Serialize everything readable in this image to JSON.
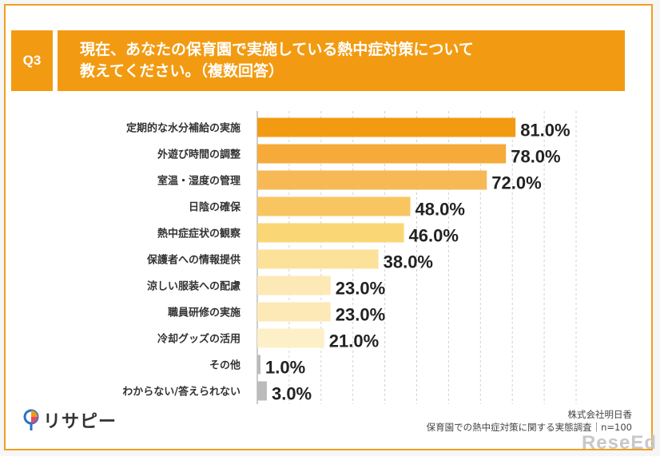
{
  "question": {
    "number": "Q3",
    "title": "現在、あなたの保育園で実施している熱中症対策について\n教えてください。（複数回答）"
  },
  "chart_data": {
    "type": "bar",
    "orientation": "horizontal",
    "categories": [
      "定期的な水分補給の実施",
      "外遊び時間の調整",
      "室温・湿度の管理",
      "日陰の確保",
      "熱中症症状の観察",
      "保護者への情報提供",
      "涼しい服装への配慮",
      "職員研修の実施",
      "冷却グッズの活用",
      "その他",
      "わからない/答えられない"
    ],
    "values": [
      81.0,
      78.0,
      72.0,
      48.0,
      46.0,
      38.0,
      23.0,
      23.0,
      21.0,
      1.0,
      3.0
    ],
    "labels": [
      "81.0%",
      "78.0%",
      "72.0%",
      "48.0%",
      "46.0%",
      "38.0%",
      "23.0%",
      "23.0%",
      "21.0%",
      "1.0%",
      "3.0%"
    ],
    "colors": [
      "#f29b12",
      "#f5aa3a",
      "#f7b956",
      "#f9c560",
      "#fad675",
      "#fce299",
      "#fde9b5",
      "#fde9b5",
      "#fdefc8",
      "#bbbbbb",
      "#bbbbbb"
    ],
    "xlim": [
      0,
      100
    ],
    "grid": true
  },
  "footer": {
    "company": "株式会社明日香",
    "survey": "保育園での熱中症対策に関する実態調査｜n=100"
  },
  "logo": {
    "text": "リサピー"
  },
  "watermark": {
    "text": "ReseEd"
  }
}
